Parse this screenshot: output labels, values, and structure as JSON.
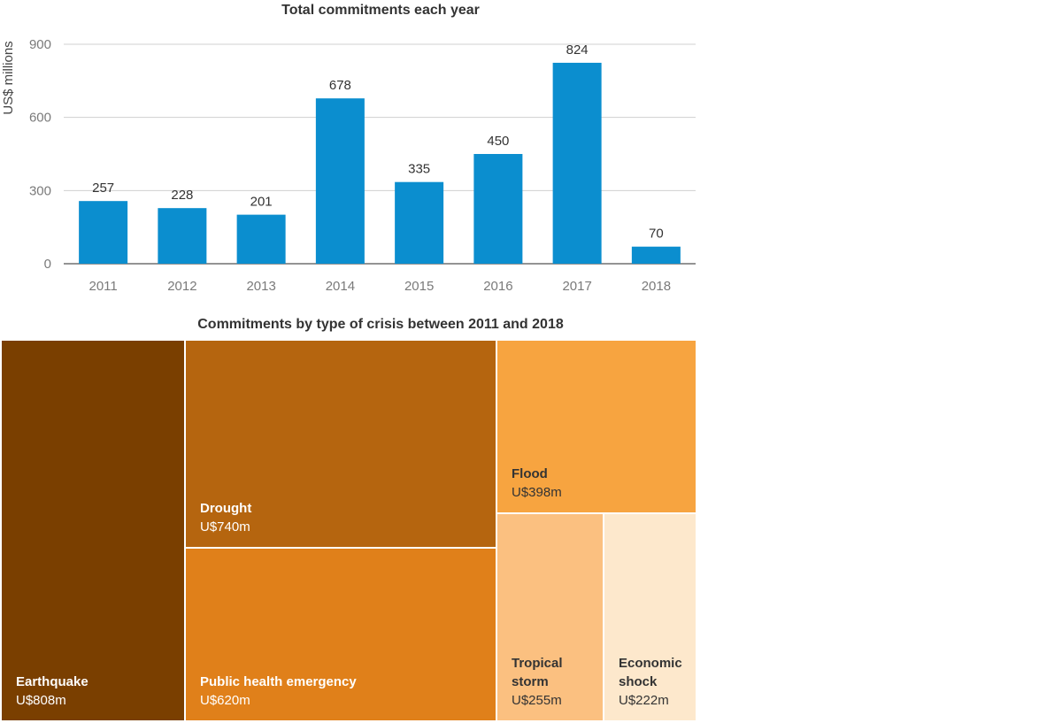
{
  "chart_data": [
    {
      "type": "bar",
      "title": "Total commitments each year",
      "ylabel": "US$ millions",
      "xlabel": "",
      "categories": [
        "2011",
        "2012",
        "2013",
        "2014",
        "2015",
        "2016",
        "2017",
        "2018"
      ],
      "values": [
        257,
        228,
        201,
        678,
        335,
        450,
        824,
        70
      ],
      "ylim": [
        0,
        900
      ],
      "yticks": [
        0,
        300,
        600,
        900
      ],
      "grid": true,
      "bar_color": "#0b8ecf"
    },
    {
      "type": "treemap",
      "title": "Commitments by type of crisis between 2011 and 2018",
      "items": [
        {
          "name": "Earthquake",
          "value_label": "U$808m",
          "value": 808,
          "color": "#7a3f00"
        },
        {
          "name": "Drought",
          "value_label": "U$740m",
          "value": 740,
          "color": "#b5650f"
        },
        {
          "name": "Public health emergency",
          "value_label": "U$620m",
          "value": 620,
          "color": "#e0801a"
        },
        {
          "name": "Flood",
          "value_label": "U$398m",
          "value": 398,
          "color": "#f7a440"
        },
        {
          "name": "Tropical storm",
          "value_label": "U$255m",
          "value": 255,
          "color": "#fbc080"
        },
        {
          "name": "Economic shock",
          "value_label": "U$222m",
          "value": 222,
          "color": "#fde8cc"
        }
      ]
    }
  ]
}
